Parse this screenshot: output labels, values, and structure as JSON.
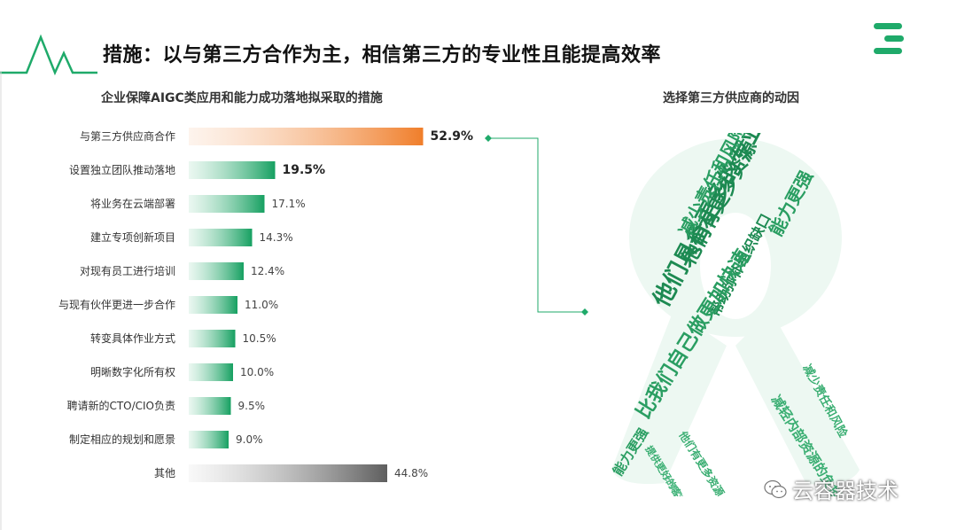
{
  "header": {
    "title": "措施：以与第三方合作为主，相信第三方的专业性且能提高效率"
  },
  "left_panel": {
    "subtitle": "企业保障AIGC类应用和能力成功落地拟采取的措施"
  },
  "right_panel": {
    "subtitle": "选择第三方供应商的动因",
    "word_cloud": [
      {
        "text": "他们具备更多的专业知识",
        "color": "#1d8a52"
      },
      {
        "text": "他们有更多资源",
        "color": "#1d8a52"
      },
      {
        "text": "减少责任和风险",
        "color": "#2a9e62"
      },
      {
        "text": "能力更强",
        "color": "#2a9e62"
      },
      {
        "text": "帮助弥补组织缺口",
        "color": "#1d8a52"
      },
      {
        "text": "比我们自己做更加快速",
        "color": "#2a9e62"
      },
      {
        "text": "减轻内部资源的负担",
        "color": "#3aae72"
      },
      {
        "text": "提供更好的客户体验",
        "color": "#3aae72"
      },
      {
        "text": "他们有更多资源",
        "color": "#3aae72"
      },
      {
        "text": "能力更强",
        "color": "#2a9e62"
      },
      {
        "text": "比我们自己做更加快速",
        "color": "#5cc08e"
      },
      {
        "text": "减少责任和风险",
        "color": "#3aae72"
      }
    ]
  },
  "watermark": {
    "text": "云容器技术"
  },
  "colors": {
    "accent_green": "#1faa6a",
    "highlight_orange": "#f08a3c",
    "other_gray": "#6b6b6b"
  },
  "chart_data": {
    "type": "bar",
    "orientation": "horizontal",
    "categories": [
      "与第三方供应商合作",
      "设置独立团队推动落地",
      "将业务在云端部署",
      "建立专项创新项目",
      "对现有员工进行培训",
      "与现有伙伴更进一步合作",
      "转变具体作业方式",
      "明晰数字化所有权",
      "聘请新的CTO/CIO负责",
      "制定相应的规划和愿景",
      "其他"
    ],
    "values": [
      52.9,
      19.5,
      17.1,
      14.3,
      12.4,
      11.0,
      10.5,
      10.0,
      9.5,
      9.0,
      44.8
    ],
    "labels": [
      "52.9%",
      "19.5%",
      "17.1%",
      "14.3%",
      "12.4%",
      "11.0%",
      "10.5%",
      "10.0%",
      "9.5%",
      "9.0%",
      "44.8%"
    ],
    "title": "企业保障AIGC类应用和能力成功落地拟采取的措施",
    "xlabel": "",
    "ylabel": ""
  }
}
